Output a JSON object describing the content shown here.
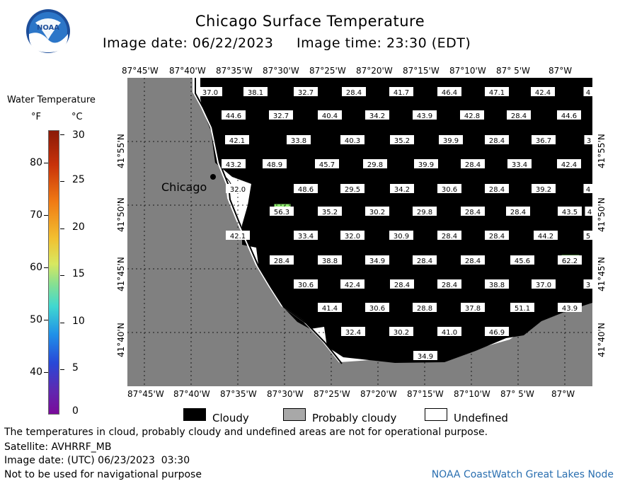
{
  "header": {
    "title": "Chicago Surface Temperature",
    "image_date": "Image date: 06/22/2023",
    "image_time": "Image time: 23:30 (EDT)"
  },
  "logo": {
    "text": "NOAA",
    "icon": "noaa-logo-icon"
  },
  "colorbar": {
    "title": "Water Temperature",
    "unit_f": "°F",
    "unit_c": "°C",
    "ticks_f": [
      "80",
      "70",
      "60",
      "50",
      "40"
    ],
    "ticks_c": [
      "30",
      "25",
      "20",
      "15",
      "10",
      "5",
      "0"
    ]
  },
  "map": {
    "city_label": "Chicago",
    "lon_labels": [
      "87°45'W",
      "87°40'W",
      "87°35'W",
      "87°30'W",
      "87°25'W",
      "87°20'W",
      "87°15'W",
      "87°10'W",
      "87° 5'W",
      "87°W"
    ],
    "lat_labels": [
      "41°55'N",
      "41°50'N",
      "41°45'N",
      "41°40'N"
    ],
    "colors": {
      "land": "#808080",
      "cloud": "#000000",
      "undefined": "#ffffff",
      "warm_patch": "#90ee70"
    },
    "temperature_rows": [
      [
        "37.0",
        "38.1",
        "32.7",
        "28.4",
        "41.7",
        "46.4",
        "47.1",
        "42.4",
        "4"
      ],
      [
        "44.6",
        "32.7",
        "40.4",
        "34.2",
        "43.9",
        "42.8",
        "28.4",
        "44.6"
      ],
      [
        "42.1",
        "33.8",
        "40.3",
        "35.2",
        "39.9",
        "28.4",
        "36.7",
        "3"
      ],
      [
        "43.2",
        "48.9",
        "45.7",
        "29.8",
        "39.9",
        "28.4",
        "33.4",
        "42.4"
      ],
      [
        "32.0",
        "48.6",
        "29.5",
        "34.2",
        "30.6",
        "28.4",
        "39.2",
        "4"
      ],
      [
        "56.3",
        "35.2",
        "30.2",
        "29.8",
        "28.4",
        "28.4",
        "43.5",
        "4"
      ],
      [
        "42.1",
        "33.4",
        "32.0",
        "30.9",
        "28.4",
        "28.4",
        "44.2",
        "5"
      ],
      [
        "28.4",
        "38.8",
        "34.9",
        "28.4",
        "28.4",
        "45.6",
        "62.2"
      ],
      [
        "30.6",
        "42.4",
        "28.4",
        "28.4",
        "38.8",
        "37.0",
        "3"
      ],
      [
        "41.4",
        "30.6",
        "28.8",
        "37.8",
        "51.1",
        "43.9"
      ],
      [
        "32.4",
        "30.2",
        "41.0",
        "46.9"
      ],
      [
        "34.9"
      ]
    ]
  },
  "legend": {
    "cloudy": "Cloudy",
    "probably_cloudy": "Probably cloudy",
    "undefined": "Undefined"
  },
  "footer": {
    "disclaimer": "The temperatures in cloud, probably cloudy and undefined areas are not for operational purpose.",
    "satellite": "Satellite: AVHRRF_MB",
    "utc_date": "Image date: (UTC) 06/23/2023  03:30",
    "nav_warning": "Not to be used for navigational purpose",
    "node": "NOAA CoastWatch Great Lakes Node"
  }
}
